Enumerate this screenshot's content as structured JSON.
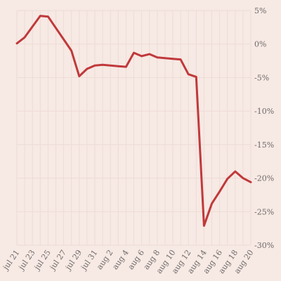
{
  "chart_data": {
    "type": "line",
    "title": "",
    "xlabel": "",
    "ylabel": "",
    "grid": true,
    "y_axis_position": "right",
    "ylim": [
      -30,
      5
    ],
    "y_ticks": [
      {
        "value": 5,
        "label": "5%"
      },
      {
        "value": 0,
        "label": "0%"
      },
      {
        "value": -5,
        "label": "-5%"
      },
      {
        "value": -10,
        "label": "-10%"
      },
      {
        "value": -15,
        "label": "-15%"
      },
      {
        "value": -20,
        "label": "-20%"
      },
      {
        "value": -25,
        "label": "-25%"
      },
      {
        "value": -30,
        "label": "-30%"
      }
    ],
    "x_ticks": [
      "jul 21",
      "jul 23",
      "jul 25",
      "jul 27",
      "jul 29",
      "jul 31",
      "aug 2",
      "aug 4",
      "aug 6",
      "aug 8",
      "aug 10",
      "aug 12",
      "aug 14",
      "aug 16",
      "aug 18",
      "aug 20"
    ],
    "line_color": "#c0393b",
    "series": [
      {
        "x": [
          "2021-07-21",
          "2021-07-22",
          "2021-07-23",
          "2021-07-24",
          "2021-07-25",
          "2021-07-26",
          "2021-07-27",
          "2021-07-28",
          "2021-07-29",
          "2021-07-30",
          "2021-07-31",
          "2021-08-01",
          "2021-08-02",
          "2021-08-03",
          "2021-08-04",
          "2021-08-05",
          "2021-08-06",
          "2021-08-07",
          "2021-08-08",
          "2021-08-09",
          "2021-08-10",
          "2021-08-11",
          "2021-08-12",
          "2021-08-13",
          "2021-08-14",
          "2021-08-15",
          "2021-08-16",
          "2021-08-17",
          "2021-08-18",
          "2021-08-19",
          "2021-08-20"
        ],
        "values": [
          0.1,
          1.0,
          2.6,
          4.2,
          4.1,
          2.4,
          0.7,
          -1.0,
          -4.8,
          -3.7,
          -3.2,
          -3.1,
          -3.2,
          -3.3,
          -3.4,
          -1.3,
          -1.8,
          -1.5,
          -2.0,
          -2.1,
          -2.2,
          -2.3,
          -4.5,
          -4.9,
          -27.1,
          -23.8,
          -22.0,
          -20.1,
          -19.0,
          -20.0,
          -20.6
        ]
      }
    ]
  }
}
